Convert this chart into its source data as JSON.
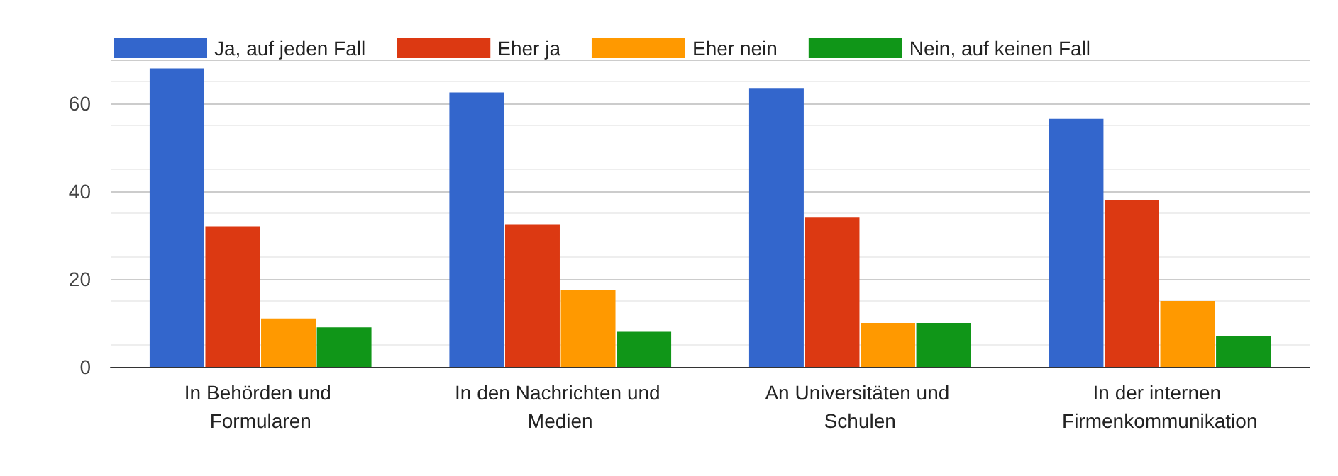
{
  "chart_data": {
    "type": "bar",
    "categories": [
      "In Behörden und Formularen",
      "In den Nachrichten und Medien",
      "An Universitäten und Schulen",
      "In der internen Firmenkommunikation"
    ],
    "series": [
      {
        "name": "Ja, auf jeden Fall",
        "color": "#3366cc",
        "values": [
          68,
          62.5,
          63.5,
          56.5
        ]
      },
      {
        "name": "Eher ja",
        "color": "#dc3912",
        "values": [
          32,
          32.5,
          34,
          38
        ]
      },
      {
        "name": "Eher nein",
        "color": "#ff9900",
        "values": [
          11,
          17.5,
          10,
          15
        ]
      },
      {
        "name": "Nein, auf keinen Fall",
        "color": "#109618",
        "values": [
          9,
          8,
          10,
          7
        ]
      }
    ],
    "ylim": [
      0,
      70
    ],
    "yticks": [
      0,
      20,
      40,
      60,
      {
        "value": 70,
        "label": null
      }
    ],
    "grid": "y",
    "legend": "top left"
  }
}
